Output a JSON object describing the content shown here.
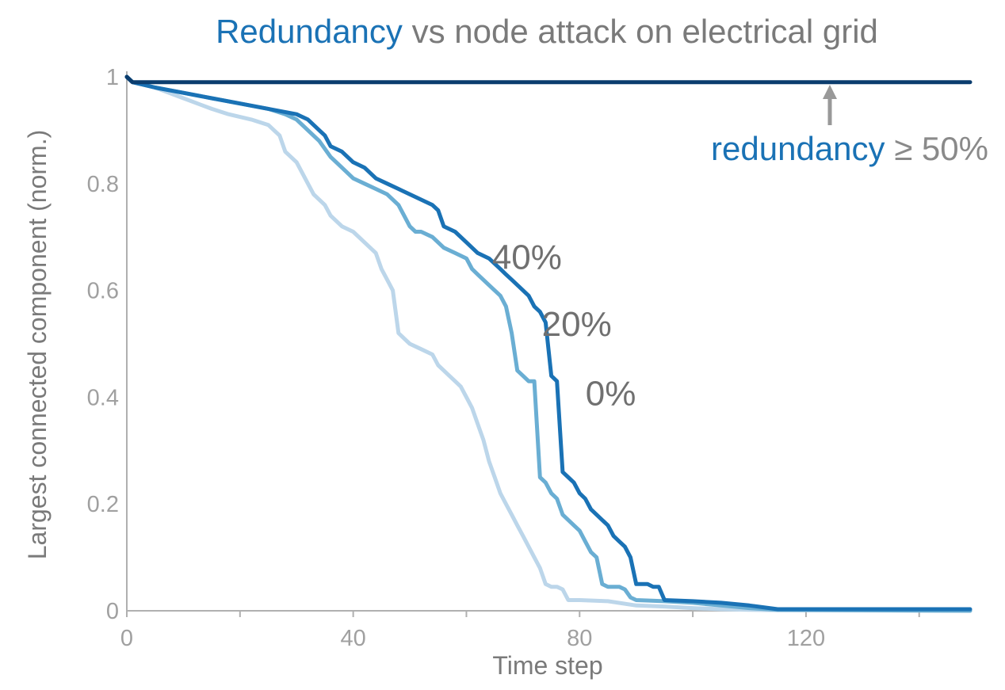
{
  "title": {
    "highlight": "Redundancy",
    "rest": " vs node attack on electrical grid"
  },
  "annotation": {
    "highlight": "redundancy",
    "rest": " ≥ 50%"
  },
  "colors": {
    "accent": "#1a72b5",
    "text_gray": "#7a7a7a",
    "axis": "#b0b0b0",
    "arrow": "#999999"
  },
  "chart_data": {
    "type": "line",
    "title": "Redundancy vs node attack on electrical grid",
    "xlabel": "Time step",
    "ylabel": "Largest connected component (norm.)",
    "xlim": [
      0,
      149
    ],
    "ylim": [
      0,
      1
    ],
    "xticks": [
      0,
      40,
      80,
      120
    ],
    "xtick_labels": [
      "0",
      "40",
      "80",
      "120"
    ],
    "yticks": [
      0,
      0.2,
      0.4,
      0.6,
      0.8,
      1
    ],
    "ytick_labels": [
      "0",
      "0.2",
      "0.4",
      "0.6",
      "0.8",
      "1"
    ],
    "grid": false,
    "legend": "none (direct labels)",
    "series": [
      {
        "name": "0%",
        "color": "#bcd6ea",
        "x": [
          0,
          1,
          5,
          10,
          15,
          18,
          22,
          25,
          27,
          28,
          30,
          32,
          33,
          35,
          36,
          38,
          40,
          42,
          44,
          45,
          46,
          47,
          48,
          49,
          50,
          52,
          54,
          55,
          56,
          57,
          58,
          59,
          60,
          61,
          62,
          63,
          64,
          65,
          66,
          67,
          68,
          69,
          70,
          71,
          72,
          73,
          74,
          75,
          76,
          77,
          78,
          79,
          80,
          85,
          90,
          95,
          100,
          105,
          110,
          115,
          149
        ],
        "y": [
          1.0,
          0.99,
          0.98,
          0.96,
          0.94,
          0.93,
          0.92,
          0.91,
          0.89,
          0.86,
          0.84,
          0.8,
          0.78,
          0.76,
          0.74,
          0.72,
          0.71,
          0.69,
          0.67,
          0.64,
          0.62,
          0.6,
          0.52,
          0.51,
          0.5,
          0.49,
          0.48,
          0.46,
          0.45,
          0.44,
          0.43,
          0.42,
          0.4,
          0.38,
          0.35,
          0.32,
          0.28,
          0.25,
          0.22,
          0.2,
          0.18,
          0.16,
          0.14,
          0.12,
          0.1,
          0.08,
          0.05,
          0.045,
          0.045,
          0.04,
          0.02,
          0.02,
          0.02,
          0.018,
          0.01,
          0.008,
          0.005,
          0.003,
          0.002,
          0.001,
          0.0
        ]
      },
      {
        "name": "20%",
        "color": "#6aaed3",
        "x": [
          0,
          1,
          5,
          10,
          15,
          20,
          25,
          28,
          30,
          32,
          34,
          36,
          38,
          40,
          42,
          44,
          46,
          48,
          50,
          51,
          52,
          54,
          56,
          58,
          60,
          61,
          62,
          64,
          66,
          67,
          68,
          69,
          70,
          71,
          72,
          73,
          74,
          75,
          76,
          77,
          78,
          79,
          80,
          81,
          82,
          83,
          84,
          85,
          86,
          87,
          88,
          89,
          90,
          95,
          100,
          105,
          110,
          115,
          149
        ],
        "y": [
          1.0,
          0.99,
          0.98,
          0.97,
          0.96,
          0.95,
          0.94,
          0.93,
          0.92,
          0.9,
          0.88,
          0.85,
          0.83,
          0.81,
          0.8,
          0.79,
          0.78,
          0.76,
          0.72,
          0.71,
          0.71,
          0.7,
          0.68,
          0.67,
          0.66,
          0.64,
          0.63,
          0.61,
          0.59,
          0.57,
          0.52,
          0.45,
          0.44,
          0.43,
          0.43,
          0.25,
          0.24,
          0.22,
          0.21,
          0.18,
          0.17,
          0.16,
          0.15,
          0.13,
          0.11,
          0.1,
          0.05,
          0.045,
          0.045,
          0.045,
          0.04,
          0.025,
          0.02,
          0.018,
          0.015,
          0.01,
          0.005,
          0.002,
          0.0
        ]
      },
      {
        "name": "40%",
        "color": "#1a72b5",
        "x": [
          0,
          1,
          5,
          10,
          15,
          20,
          25,
          30,
          32,
          34,
          35,
          36,
          38,
          40,
          42,
          44,
          46,
          48,
          50,
          52,
          54,
          55,
          56,
          58,
          60,
          62,
          64,
          66,
          67,
          68,
          70,
          71,
          72,
          73,
          74,
          75,
          76,
          77,
          78,
          79,
          80,
          81,
          82,
          83,
          84,
          85,
          86,
          87,
          88,
          89,
          90,
          92,
          93,
          94,
          95,
          100,
          105,
          110,
          115,
          149
        ],
        "y": [
          1.0,
          0.99,
          0.98,
          0.97,
          0.96,
          0.95,
          0.94,
          0.93,
          0.92,
          0.9,
          0.89,
          0.87,
          0.86,
          0.84,
          0.83,
          0.81,
          0.8,
          0.79,
          0.78,
          0.77,
          0.76,
          0.75,
          0.72,
          0.71,
          0.69,
          0.67,
          0.66,
          0.64,
          0.63,
          0.62,
          0.6,
          0.59,
          0.57,
          0.56,
          0.54,
          0.44,
          0.43,
          0.26,
          0.25,
          0.24,
          0.22,
          0.21,
          0.19,
          0.18,
          0.17,
          0.16,
          0.14,
          0.13,
          0.12,
          0.1,
          0.05,
          0.05,
          0.045,
          0.045,
          0.02,
          0.018,
          0.015,
          0.01,
          0.003,
          0.003
        ]
      },
      {
        "name": "≥ 50%",
        "color": "#0b3d6e",
        "x": [
          0,
          1,
          149
        ],
        "y": [
          1.0,
          0.99,
          0.99
        ]
      }
    ]
  }
}
